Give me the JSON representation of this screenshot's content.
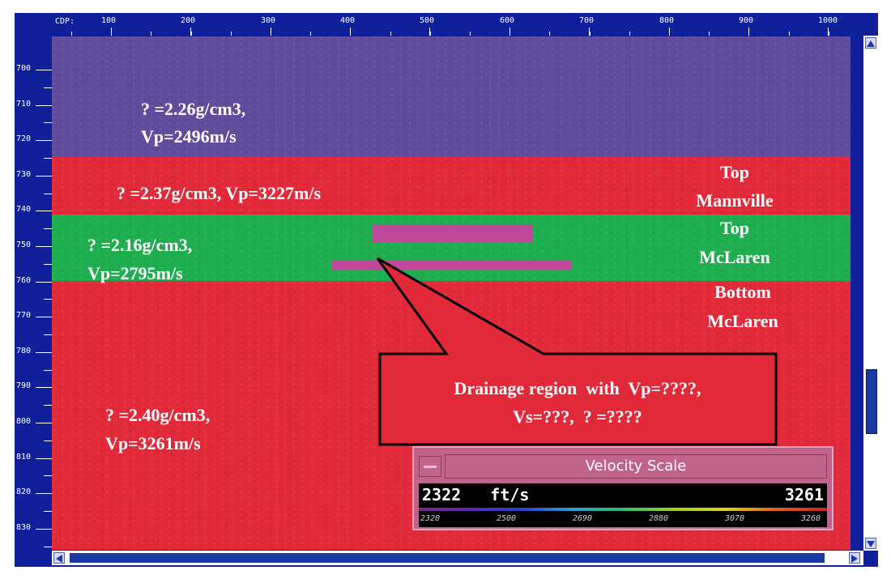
{
  "ruler": {
    "cdp_label": "CDP:",
    "x_ticks": [
      "100",
      "200",
      "300",
      "400",
      "500",
      "600",
      "700",
      "800",
      "900",
      "1000"
    ],
    "y_ticks": [
      "700",
      "710",
      "720",
      "730",
      "740",
      "750",
      "760",
      "770",
      "780",
      "790",
      "800",
      "810",
      "820",
      "830"
    ]
  },
  "layers": {
    "upper": {
      "line1": "? =2.26g/cm3,",
      "line2": "Vp=2496m/s",
      "color": "#634b9c"
    },
    "mannville": {
      "text": "? =2.37g/cm3,  Vp=3227m/s",
      "color": "#e2293a"
    },
    "mclaren": {
      "line1": "? =2.16g/cm3,",
      "line2": "Vp=2795m/s",
      "color": "#1fae4f"
    },
    "lower": {
      "line1": "? =2.40g/cm3,",
      "line2": "Vp=3261m/s",
      "color": "#e2293a"
    }
  },
  "horizons": {
    "top_mannville": {
      "line1": "Top",
      "line2": "Mannville"
    },
    "top_mclaren": {
      "line1": "Top",
      "line2": "McLaren"
    },
    "bottom_mclaren": {
      "line1": "Bottom",
      "line2": "McLaren"
    }
  },
  "callout": {
    "line1": "Drainage region  with  Vp=????,",
    "line2": "Vs=???,  ? =????"
  },
  "velocity_scale": {
    "title": "Velocity Scale",
    "min_label": "2322   ft/s",
    "max_label": "3261",
    "ticks": [
      "2320",
      "2500",
      "2690",
      "2880",
      "3070",
      "3260"
    ]
  },
  "colors": {
    "drainage": "#c04898",
    "frame": "#10209a"
  }
}
